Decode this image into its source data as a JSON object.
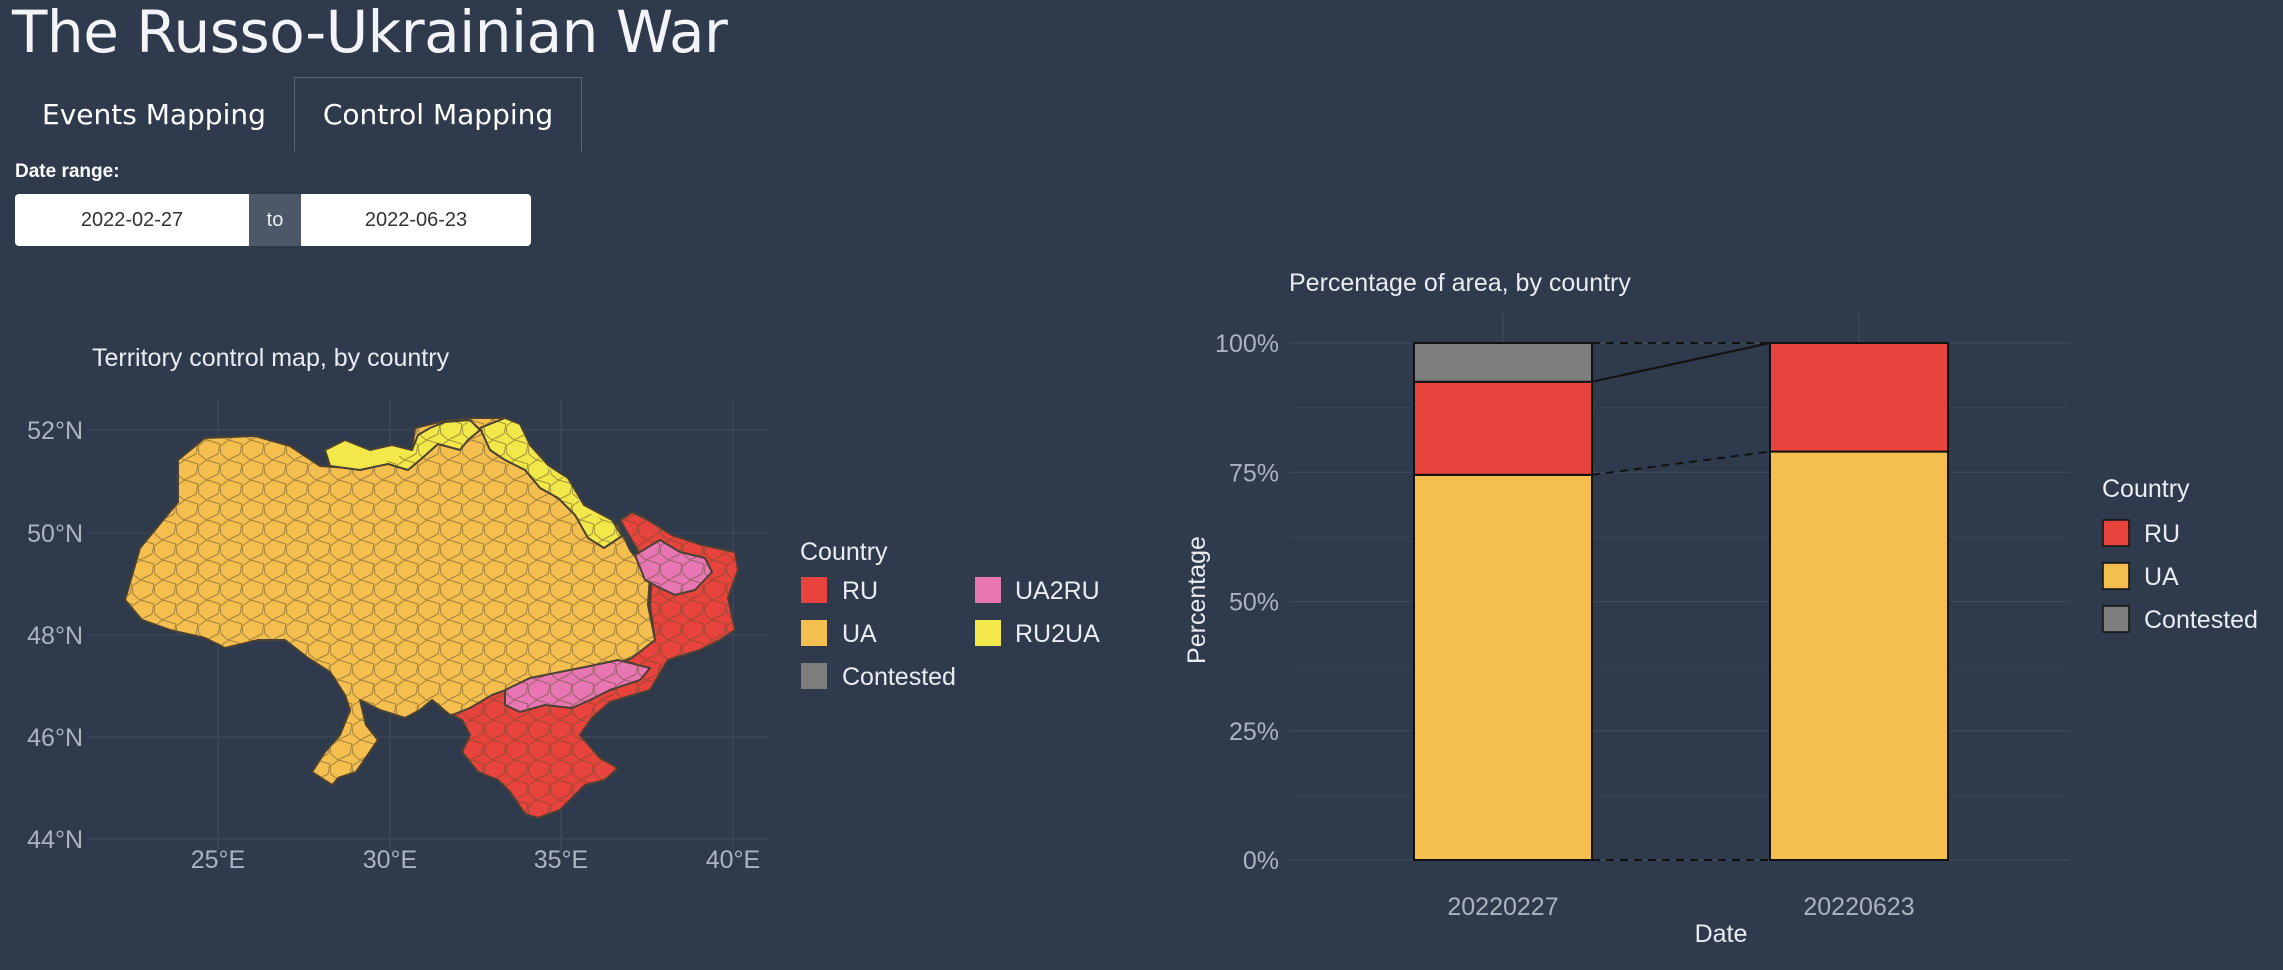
{
  "app": {
    "title": "The Russo-Ukrainian War"
  },
  "tabs": [
    {
      "label": "Events Mapping",
      "active": false
    },
    {
      "label": "Control Mapping",
      "active": true
    }
  ],
  "date_range": {
    "label": "Date range:",
    "start": "2022-02-27",
    "separator": "to",
    "end": "2022-06-23"
  },
  "colors": {
    "RU": "#e8433d",
    "UA": "#f5bf4f",
    "Contested": "#7d7d7d",
    "UA2RU": "#e776b2",
    "RU2UA": "#f3e84a",
    "background": "#2f3b4c"
  },
  "map": {
    "title": "Territory control map, by country",
    "lat_ticks": [
      "52°N",
      "50°N",
      "48°N",
      "46°N",
      "44°N"
    ],
    "lon_ticks": [
      "25°E",
      "30°E",
      "35°E",
      "40°E"
    ],
    "legend_title": "Country",
    "legend": [
      {
        "label": "RU",
        "color": "#e8433d"
      },
      {
        "label": "UA2RU",
        "color": "#e776b2"
      },
      {
        "label": "UA",
        "color": "#f5bf4f"
      },
      {
        "label": "RU2UA",
        "color": "#f3e84a"
      },
      {
        "label": "Contested",
        "color": "#7d7d7d"
      }
    ]
  },
  "chart_data": {
    "type": "bar",
    "stacked": true,
    "title": "Percentage of area, by country",
    "xlabel": "Date",
    "ylabel": "Percentage",
    "categories": [
      "20220227",
      "20220623"
    ],
    "ylim": [
      0,
      100
    ],
    "yticks": [
      "0%",
      "25%",
      "50%",
      "75%",
      "100%"
    ],
    "series": [
      {
        "name": "UA",
        "color": "#f5bf4f",
        "values": [
          74.5,
          79
        ]
      },
      {
        "name": "RU",
        "color": "#e8433d",
        "values": [
          18,
          21
        ]
      },
      {
        "name": "Contested",
        "color": "#7d7d7d",
        "values": [
          7.5,
          0
        ]
      }
    ],
    "legend_title": "Country",
    "legend_order": [
      "RU",
      "UA",
      "Contested"
    ],
    "legend_position": "right",
    "grid": true
  }
}
